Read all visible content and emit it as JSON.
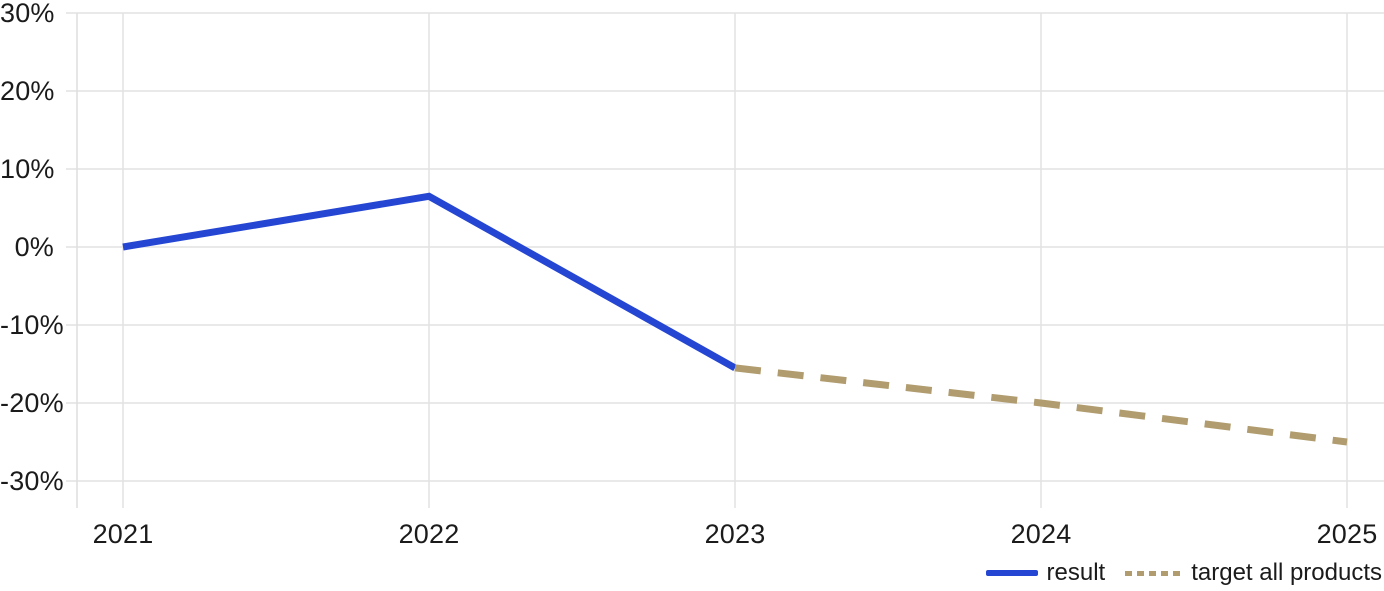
{
  "chart_data": {
    "type": "line",
    "title": "",
    "xlabel": "",
    "ylabel": "",
    "categories": [
      "2021",
      "2022",
      "2023",
      "2024",
      "2025"
    ],
    "yticks": [
      {
        "label": "30%",
        "value": 30
      },
      {
        "label": "20%",
        "value": 20
      },
      {
        "label": "10%",
        "value": 10
      },
      {
        "label": "0%",
        "value": 0
      },
      {
        "label": "-10%",
        "value": -10
      },
      {
        "label": "-20%",
        "value": -20
      },
      {
        "label": "-30%",
        "value": -30
      }
    ],
    "ylim": [
      -33.5,
      30
    ],
    "grid": true,
    "legend_position": "bottom-right",
    "series": [
      {
        "name": "result",
        "line_style": "solid",
        "color": "#2446d2",
        "points": [
          {
            "x": "2021",
            "y": 0
          },
          {
            "x": "2022",
            "y": 6.5
          },
          {
            "x": "2023",
            "y": -15.5
          }
        ]
      },
      {
        "name": "target all products",
        "line_style": "dashed",
        "color": "#b09c6e",
        "points": [
          {
            "x": "2023",
            "y": -15.5
          },
          {
            "x": "2024",
            "y": -20
          },
          {
            "x": "2025",
            "y": -25
          }
        ]
      }
    ],
    "colors": {
      "grid": "#e2e2e2",
      "axis": "#dedede",
      "text": "#1b1b1b",
      "background": "#ffffff"
    }
  }
}
